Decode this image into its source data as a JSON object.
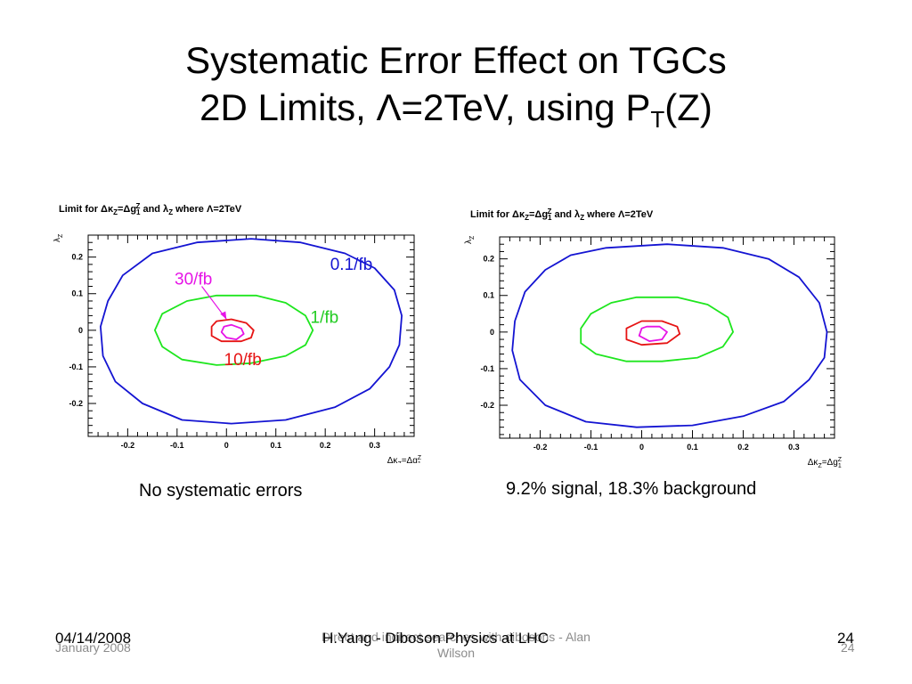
{
  "slide": {
    "title_line1": "Systematic Error Effect on TGCs",
    "title_line2_prefix": "2D Limits, Λ=2TeV, using P",
    "title_line2_sub": "T",
    "title_line2_suffix": "(Z)",
    "caption_left": "No systematic errors",
    "caption_right": "9.2% signal, 18.3% background"
  },
  "footer": {
    "date": "04/14/2008",
    "ghost_date": "January 2008",
    "center": "H.Yang - Diboson Physics at LHC",
    "ghost_center_line1": "Direct and indirect searches with dibosons - Alan",
    "ghost_center_line2": "Wilson",
    "page": "24",
    "ghost_page": "24"
  },
  "colors": {
    "line_0.1fb": "#1414d2",
    "line_1fb": "#1ee61e",
    "line_10fb": "#e61414",
    "line_30fb": "#e614e6"
  },
  "chart_data": [
    {
      "type": "line",
      "title": "Limit for Δκ_Z=Δg_1^Z and λ_Z where Λ=2TeV",
      "xlabel": "Δκ_Z=Δg_1^Z",
      "ylabel": "λ_Z",
      "xlim": [
        -0.28,
        0.38
      ],
      "ylim": [
        -0.29,
        0.26
      ],
      "xticks": [
        "-0.2",
        "-0.1",
        "0",
        "0.1",
        "0.2",
        "0.3"
      ],
      "yticks": [
        "0.2",
        "0.1",
        "0",
        "-0.1",
        "-0.2"
      ],
      "annotations": [
        "0.1/fb",
        "1/fb",
        "10/fb",
        "30/fb"
      ],
      "series": [
        {
          "name": "0.1/fb",
          "color": "#1414d2",
          "closed": true,
          "points": [
            [
              -0.06,
              0.24
            ],
            [
              0.05,
              0.25
            ],
            [
              0.15,
              0.24
            ],
            [
              0.24,
              0.21
            ],
            [
              0.3,
              0.17
            ],
            [
              0.34,
              0.11
            ],
            [
              0.355,
              0.04
            ],
            [
              0.35,
              -0.04
            ],
            [
              0.33,
              -0.1
            ],
            [
              0.29,
              -0.16
            ],
            [
              0.22,
              -0.21
            ],
            [
              0.12,
              -0.245
            ],
            [
              0.01,
              -0.255
            ],
            [
              -0.09,
              -0.245
            ],
            [
              -0.17,
              -0.2
            ],
            [
              -0.225,
              -0.14
            ],
            [
              -0.25,
              -0.07
            ],
            [
              -0.255,
              0.01
            ],
            [
              -0.24,
              0.08
            ],
            [
              -0.21,
              0.15
            ],
            [
              -0.15,
              0.21
            ]
          ]
        },
        {
          "name": "1/fb",
          "color": "#1ee61e",
          "closed": true,
          "points": [
            [
              -0.02,
              0.095
            ],
            [
              0.06,
              0.095
            ],
            [
              0.12,
              0.075
            ],
            [
              0.16,
              0.04
            ],
            [
              0.175,
              0.0
            ],
            [
              0.16,
              -0.04
            ],
            [
              0.12,
              -0.07
            ],
            [
              0.05,
              -0.09
            ],
            [
              -0.02,
              -0.095
            ],
            [
              -0.09,
              -0.08
            ],
            [
              -0.13,
              -0.045
            ],
            [
              -0.145,
              0.0
            ],
            [
              -0.13,
              0.045
            ],
            [
              -0.08,
              0.08
            ]
          ]
        },
        {
          "name": "10/fb",
          "color": "#e61414",
          "closed": true,
          "points": [
            [
              -0.02,
              0.025
            ],
            [
              0.01,
              0.03
            ],
            [
              0.04,
              0.02
            ],
            [
              0.055,
              0.0
            ],
            [
              0.05,
              -0.02
            ],
            [
              0.03,
              -0.03
            ],
            [
              -0.01,
              -0.03
            ],
            [
              -0.03,
              -0.015
            ],
            [
              -0.03,
              0.01
            ]
          ]
        },
        {
          "name": "30/fb",
          "color": "#e614e6",
          "closed": true,
          "points": [
            [
              0.01,
              0.015
            ],
            [
              0.03,
              0.005
            ],
            [
              0.035,
              -0.01
            ],
            [
              0.02,
              -0.025
            ],
            [
              0.0,
              -0.02
            ],
            [
              -0.01,
              -0.005
            ],
            [
              -0.005,
              0.01
            ]
          ]
        }
      ]
    },
    {
      "type": "line",
      "title": "Limit for Δκ_Z=Δg_1^Z and λ_Z where Λ=2TeV",
      "xlabel": "Δκ_Z=Δg_1^Z",
      "ylabel": "λ_Z",
      "xlim": [
        -0.28,
        0.38
      ],
      "ylim": [
        -0.29,
        0.26
      ],
      "xticks": [
        "-0.2",
        "-0.1",
        "0",
        "0.1",
        "0.2",
        "0.3"
      ],
      "yticks": [
        "0.2",
        "0.1",
        "0",
        "-0.1",
        "-0.2"
      ],
      "series": [
        {
          "color": "#1414d2",
          "closed": true,
          "points": [
            [
              -0.07,
              0.23
            ],
            [
              0.05,
              0.24
            ],
            [
              0.16,
              0.23
            ],
            [
              0.25,
              0.2
            ],
            [
              0.31,
              0.15
            ],
            [
              0.35,
              0.08
            ],
            [
              0.365,
              0.0
            ],
            [
              0.36,
              -0.07
            ],
            [
              0.33,
              -0.13
            ],
            [
              0.28,
              -0.19
            ],
            [
              0.2,
              -0.23
            ],
            [
              0.1,
              -0.255
            ],
            [
              -0.01,
              -0.26
            ],
            [
              -0.11,
              -0.245
            ],
            [
              -0.19,
              -0.2
            ],
            [
              -0.24,
              -0.13
            ],
            [
              -0.255,
              -0.05
            ],
            [
              -0.25,
              0.03
            ],
            [
              -0.23,
              0.11
            ],
            [
              -0.19,
              0.17
            ],
            [
              -0.14,
              0.21
            ]
          ]
        },
        {
          "color": "#1ee61e",
          "closed": true,
          "points": [
            [
              -0.01,
              0.095
            ],
            [
              0.07,
              0.095
            ],
            [
              0.13,
              0.075
            ],
            [
              0.17,
              0.04
            ],
            [
              0.18,
              0.0
            ],
            [
              0.16,
              -0.04
            ],
            [
              0.11,
              -0.07
            ],
            [
              0.04,
              -0.08
            ],
            [
              -0.03,
              -0.08
            ],
            [
              -0.09,
              -0.06
            ],
            [
              -0.12,
              -0.03
            ],
            [
              -0.12,
              0.01
            ],
            [
              -0.1,
              0.05
            ],
            [
              -0.06,
              0.08
            ]
          ]
        },
        {
          "color": "#e61414",
          "closed": true,
          "points": [
            [
              0.0,
              0.03
            ],
            [
              0.04,
              0.03
            ],
            [
              0.07,
              0.015
            ],
            [
              0.075,
              -0.005
            ],
            [
              0.05,
              -0.03
            ],
            [
              0.0,
              -0.035
            ],
            [
              -0.03,
              -0.02
            ],
            [
              -0.03,
              0.01
            ]
          ]
        },
        {
          "color": "#e614e6",
          "closed": true,
          "points": [
            [
              0.01,
              0.015
            ],
            [
              0.035,
              0.015
            ],
            [
              0.05,
              0.0
            ],
            [
              0.04,
              -0.02
            ],
            [
              0.015,
              -0.025
            ],
            [
              -0.005,
              -0.01
            ],
            [
              0.0,
              0.01
            ]
          ]
        }
      ]
    }
  ]
}
